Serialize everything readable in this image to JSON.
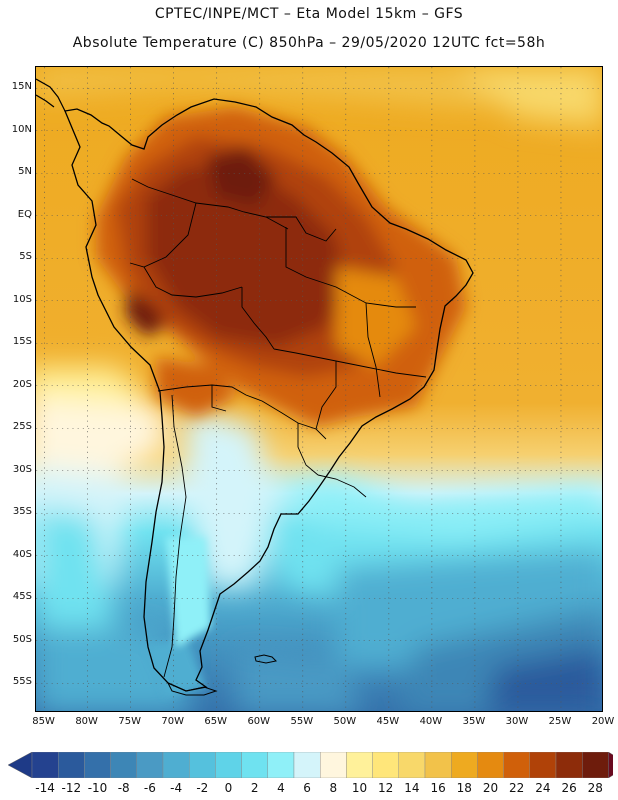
{
  "header": {
    "line1": "CPTEC/INPE/MCT –  Eta Model 15km – GFS",
    "line2": "Absolute Temperature (C) 850hPa – 29/05/2020 12UTC fct=58h"
  },
  "map": {
    "lat_labels": [
      "15N",
      "10N",
      "5N",
      "EQ",
      "5S",
      "10S",
      "15S",
      "20S",
      "25S",
      "30S",
      "35S",
      "40S",
      "45S",
      "50S",
      "55S"
    ],
    "lat_values": [
      15,
      10,
      5,
      0,
      -5,
      -10,
      -15,
      -20,
      -25,
      -30,
      -35,
      -40,
      -45,
      -50,
      -55
    ],
    "lon_labels": [
      "85W",
      "80W",
      "75W",
      "70W",
      "65W",
      "60W",
      "55W",
      "50W",
      "45W",
      "40W",
      "35W",
      "30W",
      "25W",
      "20W"
    ],
    "lon_values": [
      -85,
      -80,
      -75,
      -70,
      -65,
      -60,
      -55,
      -50,
      -45,
      -40,
      -35,
      -30,
      -25,
      -20
    ],
    "lon_range": [
      -86,
      -20
    ],
    "lat_range": [
      -58.5,
      17.5
    ]
  },
  "colorbar": {
    "labels": [
      "-14",
      "-12",
      "-10",
      "-8",
      "-6",
      "-4",
      "-2",
      "0",
      "2",
      "4",
      "6",
      "8",
      "10",
      "12",
      "14",
      "16",
      "18",
      "20",
      "22",
      "24",
      "26",
      "28"
    ],
    "colors": [
      "#24428f",
      "#2b5a9c",
      "#3470aa",
      "#3d86b6",
      "#4a9ac4",
      "#4faed1",
      "#55c1dd",
      "#5fd3e8",
      "#6fe2f0",
      "#8ff0f8",
      "#d4f4fa",
      "#fff6de",
      "#fff19a",
      "#ffe67a",
      "#f8d86a",
      "#f2c24a",
      "#eeaa20",
      "#e58a10",
      "#d0600a",
      "#b04208",
      "#8d2c0a",
      "#6e1c0c"
    ],
    "under_color": "#1e3a87",
    "over_color": "#6a0a20"
  }
}
